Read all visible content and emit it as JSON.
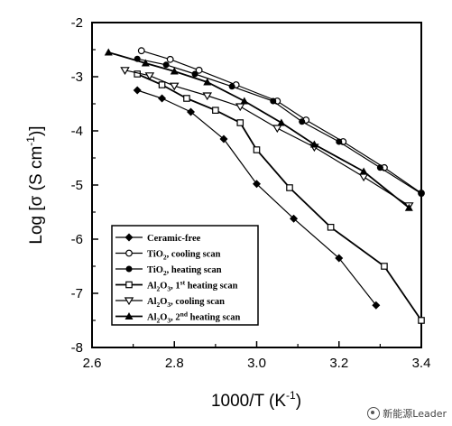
{
  "chart_data": {
    "type": "line",
    "xlabel": "1000/T  (K",
    "xlabel_sup": "-1",
    "xlabel_close": ")",
    "ylabel": "Log [σ (S cm",
    "ylabel_sup": "-1",
    "ylabel_close": ")]",
    "xlim": [
      2.6,
      3.4
    ],
    "ylim": [
      -8,
      -2
    ],
    "xticks": [
      "2.6",
      "2.8",
      "3.0",
      "3.2",
      "3.4"
    ],
    "yticks": [
      "-2",
      "-3",
      "-4",
      "-5",
      "-6",
      "-7",
      "-8"
    ],
    "grid": false,
    "legend_position": "bottom-left",
    "series": [
      {
        "name": "Ceramic-free",
        "marker": "diamond-filled",
        "lineWidth": 1.2,
        "x": [
          2.71,
          2.77,
          2.84,
          2.92,
          3.0,
          3.09,
          3.2,
          3.29
        ],
        "y": [
          -3.25,
          -3.4,
          -3.65,
          -4.15,
          -4.98,
          -5.62,
          -6.35,
          -7.22
        ]
      },
      {
        "name": "TiO2, cooling scan",
        "marker": "circle-open",
        "lineWidth": 1.2,
        "x": [
          2.72,
          2.79,
          2.86,
          2.95,
          3.05,
          3.12,
          3.21,
          3.31,
          3.4
        ],
        "y": [
          -2.52,
          -2.68,
          -2.88,
          -3.15,
          -3.45,
          -3.8,
          -4.2,
          -4.68,
          -5.15
        ]
      },
      {
        "name": "TiO2, heating scan",
        "marker": "circle-filled",
        "lineWidth": 1.2,
        "x": [
          2.71,
          2.78,
          2.85,
          2.94,
          3.04,
          3.11,
          3.2,
          3.3,
          3.4
        ],
        "y": [
          -2.67,
          -2.78,
          -2.95,
          -3.18,
          -3.45,
          -3.83,
          -4.2,
          -4.68,
          -5.16
        ]
      },
      {
        "name": "Al2O3, 1st heating scan",
        "marker": "square-open",
        "lineWidth": 1.8,
        "x": [
          2.71,
          2.77,
          2.83,
          2.9,
          2.96,
          3.0,
          3.08,
          3.18,
          3.31,
          3.4
        ],
        "y": [
          -2.95,
          -3.15,
          -3.4,
          -3.62,
          -3.85,
          -4.35,
          -5.05,
          -5.78,
          -6.5,
          -7.5
        ]
      },
      {
        "name": "Al2O3, cooling scan",
        "marker": "triangle-down-open",
        "lineWidth": 1.2,
        "x": [
          2.68,
          2.74,
          2.8,
          2.88,
          2.96,
          3.05,
          3.14,
          3.26,
          3.37
        ],
        "y": [
          -2.88,
          -2.98,
          -3.17,
          -3.35,
          -3.55,
          -3.95,
          -4.3,
          -4.85,
          -5.38
        ]
      },
      {
        "name": "Al2O3, 2nd heating scan",
        "marker": "triangle-up-filled",
        "lineWidth": 1.8,
        "x": [
          2.64,
          2.73,
          2.8,
          2.88,
          2.97,
          3.06,
          3.14,
          3.26,
          3.37
        ],
        "y": [
          -2.55,
          -2.75,
          -2.9,
          -3.1,
          -3.45,
          -3.85,
          -4.25,
          -4.75,
          -5.42
        ]
      }
    ],
    "legend": [
      {
        "text": "Ceramic-free"
      },
      {
        "pre": "TiO",
        "sub": "2",
        "post": ", cooling scan"
      },
      {
        "pre": "TiO",
        "sub": "2",
        "post": ", heating scan"
      },
      {
        "pre": "Al",
        "sub": "2",
        "mid": "O",
        "sub2": "3",
        "post": ", 1",
        "sup": "st",
        "post2": " heating scan"
      },
      {
        "pre": "Al",
        "sub": "2",
        "mid": "O",
        "sub2": "3",
        "post": ", cooling scan"
      },
      {
        "pre": "Al",
        "sub": "2",
        "mid": "O",
        "sub2": "3",
        "post": ", 2",
        "sup": "nd",
        "post2": " heating scan"
      }
    ]
  },
  "watermark": {
    "text": "新能源Leader",
    "icon": "wechat-icon"
  }
}
